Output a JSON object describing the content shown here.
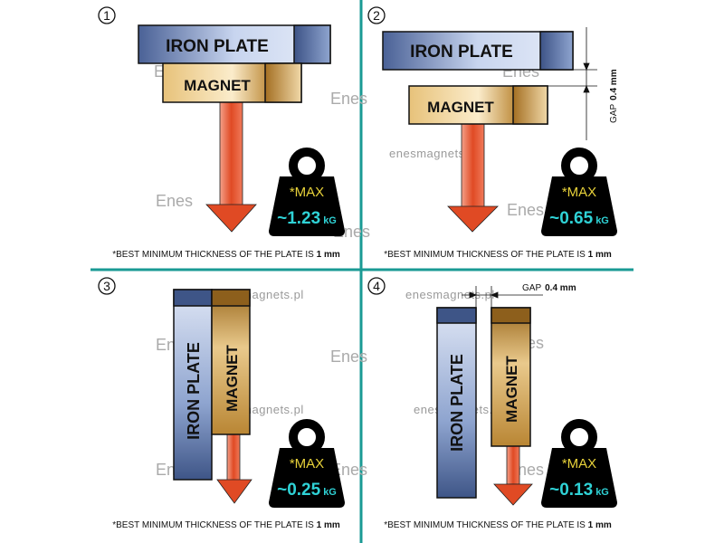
{
  "colors": {
    "divider": "#1a9a94",
    "iron": "#8ea4cf",
    "magnet": "#c9963f",
    "arrow": "#e04a24",
    "weight": "#000000",
    "max_text": "#e8d23a",
    "value_text": "#2fd2d6"
  },
  "watermark": {
    "url": "enesmagnets.pl",
    "logo": "Enes"
  },
  "footnote": {
    "text": "*BEST MINIMUM THICKNESS OF THE PLATE IS ",
    "bold": "1 mm"
  },
  "labels": {
    "iron": "IRON PLATE",
    "magnet": "MAGNET",
    "max": "*MAX",
    "unit": "kG",
    "gap": "GAP",
    "gap_value": "0.4 mm"
  },
  "panels": [
    {
      "number": "1",
      "value": "~1.23"
    },
    {
      "number": "2",
      "value": "~0.65"
    },
    {
      "number": "3",
      "value": "~0.25"
    },
    {
      "number": "4",
      "value": "~0.13"
    }
  ]
}
